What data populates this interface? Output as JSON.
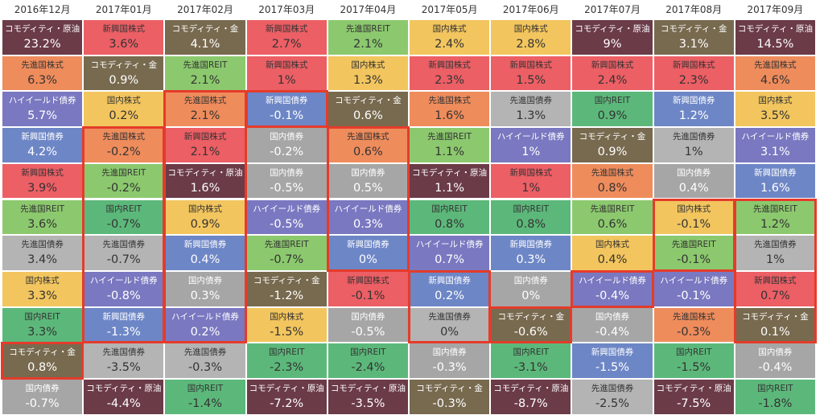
{
  "chart_data": {
    "type": "table",
    "columns": [
      "2016年12月",
      "2017年01月",
      "2017年02月",
      "2017年03月",
      "2017年04月",
      "2017年05月",
      "2017年06月",
      "2017年07月",
      "2017年08月",
      "2017年09月"
    ],
    "asset_colors": {
      "コモディティ・原油": "#6b3b48",
      "コモディティ・金": "#786a4f",
      "先進国株式": "#ef8c5c",
      "新興国株式": "#ec5f65",
      "先進国REIT": "#8cc96e",
      "国内REIT": "#5cb87a",
      "国内株式": "#f2c55e",
      "ハイイールド債券": "#7a78c0",
      "新興国債券": "#6d86c6",
      "先進国債券": "#b4b4b4",
      "国内債券": "#a6a6a6"
    },
    "cells": [
      [
        {
          "n": "コモディティ・原油",
          "v": "23.2%"
        },
        {
          "n": "先進国株式",
          "v": "6.3%"
        },
        {
          "n": "ハイイールド債券",
          "v": "5.7%"
        },
        {
          "n": "新興国債券",
          "v": "4.2%"
        },
        {
          "n": "新興国株式",
          "v": "3.9%"
        },
        {
          "n": "先進国REIT",
          "v": "3.6%"
        },
        {
          "n": "先進国債券",
          "v": "3.4%"
        },
        {
          "n": "国内株式",
          "v": "3.3%"
        },
        {
          "n": "国内REIT",
          "v": "3.3%"
        },
        {
          "n": "コモディティ・金",
          "v": "0.8%"
        },
        {
          "n": "国内債券",
          "v": "-0.7%"
        }
      ],
      [
        {
          "n": "新興国株式",
          "v": "3.6%"
        },
        {
          "n": "コモディティ・金",
          "v": "0.9%"
        },
        {
          "n": "国内株式",
          "v": "0.2%"
        },
        {
          "n": "先進国株式",
          "v": "-0.2%"
        },
        {
          "n": "先進国REIT",
          "v": "-0.2%"
        },
        {
          "n": "国内REIT",
          "v": "-0.7%"
        },
        {
          "n": "先進国債券",
          "v": "-0.7%"
        },
        {
          "n": "ハイイールド債券",
          "v": "-0.8%"
        },
        {
          "n": "新興国債券",
          "v": "-1.3%"
        },
        {
          "n": "先進国債券",
          "v": "-3.5%"
        },
        {
          "n": "コモディティ・原油",
          "v": "-4.4%"
        }
      ],
      [
        {
          "n": "コモディティ・金",
          "v": "4.1%"
        },
        {
          "n": "先進国REIT",
          "v": "2.1%"
        },
        {
          "n": "先進国株式",
          "v": "2.1%"
        },
        {
          "n": "新興国株式",
          "v": "2.1%"
        },
        {
          "n": "コモディティ・原油",
          "v": "1.6%"
        },
        {
          "n": "国内株式",
          "v": "0.9%"
        },
        {
          "n": "新興国債券",
          "v": "0.4%"
        },
        {
          "n": "国内債券",
          "v": "0.3%"
        },
        {
          "n": "ハイイールド債券",
          "v": "0.2%"
        },
        {
          "n": "先進国債券",
          "v": "-0.3%"
        },
        {
          "n": "国内REIT",
          "v": "-1.4%"
        }
      ],
      [
        {
          "n": "新興国株式",
          "v": "2.7%"
        },
        {
          "n": "新興国株式",
          "v": "1%"
        },
        {
          "n": "新興国債券",
          "v": "-0.1%"
        },
        {
          "n": "国内債券",
          "v": "-0.2%"
        },
        {
          "n": "国内債券",
          "v": "-0.5%"
        },
        {
          "n": "ハイイールド債券",
          "v": "-0.5%"
        },
        {
          "n": "先進国REIT",
          "v": "-0.7%"
        },
        {
          "n": "コモディティ・金",
          "v": "-1.2%"
        },
        {
          "n": "国内株式",
          "v": "-1.5%"
        },
        {
          "n": "国内REIT",
          "v": "-2.3%"
        },
        {
          "n": "コモディティ・原油",
          "v": "-7.2%"
        }
      ],
      [
        {
          "n": "先進国REIT",
          "v": "2.1%"
        },
        {
          "n": "国内株式",
          "v": "1.3%"
        },
        {
          "n": "コモディティ・金",
          "v": "0.6%"
        },
        {
          "n": "先進国株式",
          "v": "0.6%"
        },
        {
          "n": "国内債券",
          "v": "0.5%"
        },
        {
          "n": "ハイイールド債券",
          "v": "0.3%"
        },
        {
          "n": "新興国債券",
          "v": "0%"
        },
        {
          "n": "新興国株式",
          "v": "-0.1%"
        },
        {
          "n": "国内債券",
          "v": "-0.5%"
        },
        {
          "n": "国内REIT",
          "v": "-2.4%"
        },
        {
          "n": "コモディティ・原油",
          "v": "-3.5%"
        }
      ],
      [
        {
          "n": "国内株式",
          "v": "2.4%"
        },
        {
          "n": "新興国株式",
          "v": "2.3%"
        },
        {
          "n": "先進国株式",
          "v": "1.6%"
        },
        {
          "n": "先進国REIT",
          "v": "1.1%"
        },
        {
          "n": "コモディティ・原油",
          "v": "1.1%"
        },
        {
          "n": "国内REIT",
          "v": "0.8%"
        },
        {
          "n": "ハイイールド債券",
          "v": "0.7%"
        },
        {
          "n": "新興国債券",
          "v": "0.2%"
        },
        {
          "n": "先進国債券",
          "v": "0%"
        },
        {
          "n": "国内債券",
          "v": "-0.3%"
        },
        {
          "n": "コモディティ・金",
          "v": "-0.3%"
        }
      ],
      [
        {
          "n": "国内株式",
          "v": "2.8%"
        },
        {
          "n": "新興国株式",
          "v": "1.5%"
        },
        {
          "n": "先進国債券",
          "v": "1.3%"
        },
        {
          "n": "ハイイールド債券",
          "v": "1%"
        },
        {
          "n": "新興国株式",
          "v": "1%"
        },
        {
          "n": "国内REIT",
          "v": "0.8%"
        },
        {
          "n": "新興国債券",
          "v": "0.3%"
        },
        {
          "n": "国内債券",
          "v": "0%"
        },
        {
          "n": "コモディティ・金",
          "v": "-0.6%"
        },
        {
          "n": "国内REIT",
          "v": "-3.1%"
        },
        {
          "n": "コモディティ・原油",
          "v": "-8.7%"
        }
      ],
      [
        {
          "n": "コモディティ・原油",
          "v": "9%"
        },
        {
          "n": "新興国株式",
          "v": "2.4%"
        },
        {
          "n": "国内REIT",
          "v": "0.9%"
        },
        {
          "n": "コモディティ・金",
          "v": "0.9%"
        },
        {
          "n": "先進国株式",
          "v": "0.8%"
        },
        {
          "n": "先進国REIT",
          "v": "0.6%"
        },
        {
          "n": "国内株式",
          "v": "0.4%"
        },
        {
          "n": "ハイイールド債券",
          "v": "-0.4%"
        },
        {
          "n": "国内債券",
          "v": "-0.4%"
        },
        {
          "n": "新興国債券",
          "v": "-1.5%"
        },
        {
          "n": "先進国債券",
          "v": "-2.5%"
        }
      ],
      [
        {
          "n": "コモディティ・金",
          "v": "3.1%"
        },
        {
          "n": "新興国株式",
          "v": "2.3%"
        },
        {
          "n": "新興国債券",
          "v": "1.2%"
        },
        {
          "n": "先進国債券",
          "v": "1%"
        },
        {
          "n": "国内債券",
          "v": "0.4%"
        },
        {
          "n": "国内株式",
          "v": "-0.1%"
        },
        {
          "n": "先進国REIT",
          "v": "-0.1%"
        },
        {
          "n": "ハイイールド債券",
          "v": "-0.1%"
        },
        {
          "n": "先進国株式",
          "v": "-0.3%"
        },
        {
          "n": "国内REIT",
          "v": "-1.5%"
        },
        {
          "n": "コモディティ・原油",
          "v": "-7.5%"
        }
      ],
      [
        {
          "n": "コモディティ・原油",
          "v": "14.5%"
        },
        {
          "n": "先進国株式",
          "v": "4.6%"
        },
        {
          "n": "国内株式",
          "v": "3.5%"
        },
        {
          "n": "ハイイールド債券",
          "v": "3.1%"
        },
        {
          "n": "新興国債券",
          "v": "1.6%"
        },
        {
          "n": "先進国REIT",
          "v": "1.2%"
        },
        {
          "n": "先進国債券",
          "v": "1%"
        },
        {
          "n": "新興国株式",
          "v": "0.7%"
        },
        {
          "n": "コモディティ・金",
          "v": "0.1%"
        },
        {
          "n": "国内債券",
          "v": "-0.4%"
        },
        {
          "n": "国内REIT",
          "v": "-1.8%"
        }
      ]
    ],
    "highlight_runs": [
      {
        "col": 0,
        "from": 9,
        "to": 9
      },
      {
        "col": 1,
        "from": 3,
        "to": 8
      },
      {
        "col": 2,
        "from": 2,
        "to": 8
      },
      {
        "col": 3,
        "from": 2,
        "to": 2
      },
      {
        "col": 4,
        "from": 3,
        "to": 6
      },
      {
        "col": 5,
        "from": 7,
        "to": 8
      },
      {
        "col": 6,
        "from": 8,
        "to": 8
      },
      {
        "col": 7,
        "from": 7,
        "to": 7
      },
      {
        "col": 8,
        "from": 5,
        "to": 6
      },
      {
        "col": 9,
        "from": 5,
        "to": 8
      }
    ]
  }
}
